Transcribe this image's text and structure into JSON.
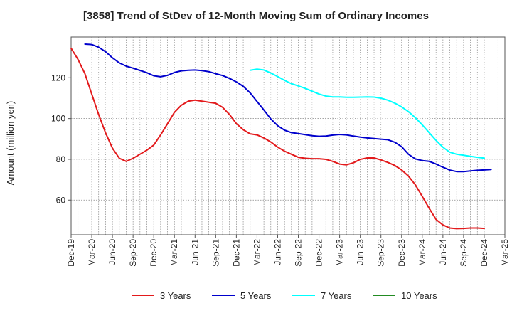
{
  "chart_data": {
    "type": "line",
    "title": "[3858]  Trend of StDev of 12-Month Moving Sum of Ordinary Incomes",
    "xlabel": "",
    "ylabel": "Amount (million yen)",
    "x_tick_labels": [
      "Dec-19",
      "Mar-20",
      "Jun-20",
      "Sep-20",
      "Dec-20",
      "Mar-21",
      "Jun-21",
      "Sep-21",
      "Dec-21",
      "Mar-22",
      "Jun-22",
      "Sep-22",
      "Dec-22",
      "Mar-23",
      "Jun-23",
      "Sep-23",
      "Dec-23",
      "Mar-24",
      "Jun-24",
      "Sep-24",
      "Dec-24",
      "Mar-25"
    ],
    "y_ticks": [
      60,
      80,
      100,
      120
    ],
    "ylim": [
      43,
      140
    ],
    "x_range_months": [
      0,
      63
    ],
    "grid": true,
    "legend_position": "bottom",
    "series": [
      {
        "name": "3 Years",
        "color": "#e31a1c",
        "start_month": 0,
        "values": [
          134.5,
          129,
          122,
          112,
          102,
          93,
          85.5,
          80.5,
          79,
          80.5,
          82.5,
          84.5,
          87,
          92,
          97.5,
          103,
          106.5,
          108.5,
          109,
          108.5,
          108,
          107.5,
          105.5,
          102,
          97.5,
          94.5,
          92.5,
          92,
          90.5,
          88.5,
          86,
          84,
          82.5,
          81,
          80.5,
          80.3,
          80.3,
          80,
          79,
          77.7,
          77.3,
          78.3,
          80,
          80.7,
          80.7,
          79.7,
          78.5,
          77,
          74.8,
          71.8,
          67.5,
          61.8,
          56,
          50.5,
          47.8,
          46.3,
          46,
          46.1,
          46.3,
          46.3,
          46.1
        ]
      },
      {
        "name": "5 Years",
        "color": "#0000cc",
        "start_month": 2,
        "values": [
          136.5,
          136.3,
          135,
          132.8,
          129.8,
          127.3,
          125.7,
          124.7,
          123.6,
          122.5,
          121,
          120.5,
          121.2,
          122.6,
          123.4,
          123.7,
          123.8,
          123.5,
          123,
          122,
          121.1,
          119.7,
          118,
          115.8,
          112.6,
          108.4,
          104.2,
          99.8,
          96.5,
          94.3,
          93.1,
          92.6,
          92.1,
          91.6,
          91.3,
          91.4,
          91.9,
          92.2,
          92,
          91.4,
          90.9,
          90.5,
          90.2,
          89.9,
          89.6,
          88.4,
          86.2,
          82.5,
          80.2,
          79.4,
          79,
          77.7,
          76.1,
          74.7,
          74,
          74,
          74.3,
          74.6,
          74.8,
          75
        ]
      },
      {
        "name": "7 Years",
        "color": "#00ffff",
        "start_month": 26,
        "values": [
          123.7,
          124.2,
          123.8,
          122.3,
          120.6,
          118.7,
          117.1,
          116,
          114.8,
          113.4,
          112,
          111,
          110.6,
          110.6,
          110.4,
          110.4,
          110.5,
          110.6,
          110.5,
          110,
          109,
          107.6,
          105.7,
          103.4,
          100.4,
          96.9,
          93.1,
          89.3,
          85.9,
          83.5,
          82.5,
          82,
          81.5,
          81,
          80.6
        ]
      },
      {
        "name": "10 Years",
        "color": "#228b22",
        "start_month": 0,
        "values": []
      }
    ]
  }
}
